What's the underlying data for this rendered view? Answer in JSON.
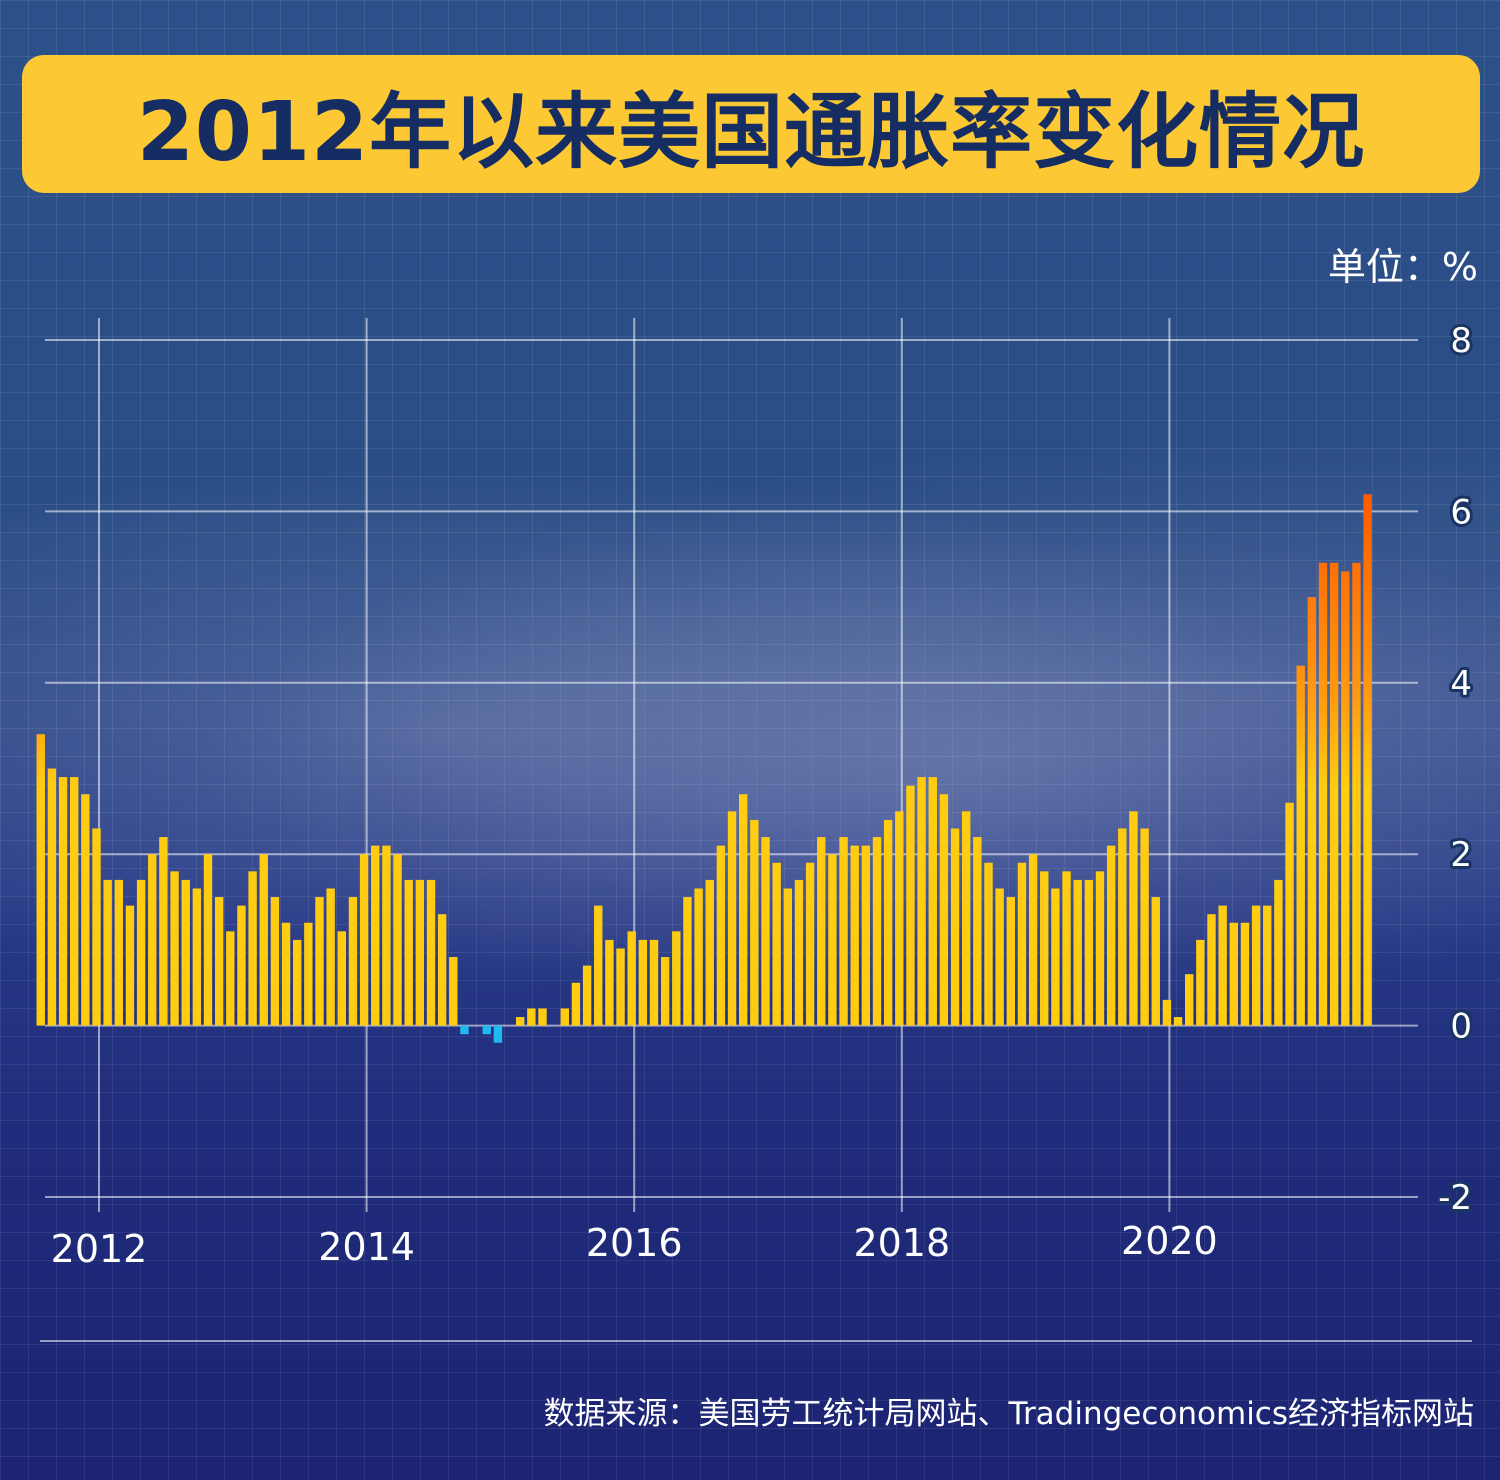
{
  "title": "2012年以来美国通胀率变化情况",
  "unit": "单位：%",
  "source": "数据来源：美国劳工统计局网站、Tradingeconomics经济指标网站",
  "colors": {
    "title_bg": "#fcc935",
    "title_text": "#152d63",
    "bar_positive_low": "#ffcc11",
    "bar_positive_high": "#ff5a00",
    "bar_negative": "#22b8f0"
  },
  "chart_data": {
    "type": "bar",
    "title": "2012年以来美国通胀率变化情况",
    "ylabel": "单位：%",
    "ylim": [
      -2,
      8
    ],
    "yticks": [
      8,
      6,
      4,
      2,
      0,
      -2
    ],
    "ytick_labels": [
      "8",
      "6",
      "4",
      "2",
      "0",
      "-2"
    ],
    "xticks": [
      "2012",
      "2014",
      "2016",
      "2018",
      "2020"
    ],
    "grid": true,
    "start": "2011-10",
    "frequency": "monthly",
    "values": [
      3.4,
      3.0,
      2.9,
      2.9,
      2.7,
      2.3,
      1.7,
      1.7,
      1.4,
      1.7,
      2.0,
      2.2,
      1.8,
      1.7,
      1.6,
      2.0,
      1.5,
      1.1,
      1.4,
      1.8,
      2.0,
      1.5,
      1.2,
      1.0,
      1.2,
      1.5,
      1.6,
      1.1,
      1.5,
      2.0,
      2.1,
      2.1,
      2.0,
      1.7,
      1.7,
      1.7,
      1.3,
      0.8,
      -0.1,
      0.0,
      -0.1,
      -0.2,
      0.0,
      0.1,
      0.2,
      0.2,
      0.0,
      0.2,
      0.5,
      0.7,
      1.4,
      1.0,
      0.9,
      1.1,
      1.0,
      1.0,
      0.8,
      1.1,
      1.5,
      1.6,
      1.7,
      2.1,
      2.5,
      2.7,
      2.4,
      2.2,
      1.9,
      1.6,
      1.7,
      1.9,
      2.2,
      2.0,
      2.2,
      2.1,
      2.1,
      2.2,
      2.4,
      2.5,
      2.8,
      2.9,
      2.9,
      2.7,
      2.3,
      2.5,
      2.2,
      1.9,
      1.6,
      1.5,
      1.9,
      2.0,
      1.8,
      1.6,
      1.8,
      1.7,
      1.7,
      1.8,
      2.1,
      2.3,
      2.5,
      2.3,
      1.5,
      0.3,
      0.1,
      0.6,
      1.0,
      1.3,
      1.4,
      1.2,
      1.2,
      1.4,
      1.4,
      1.7,
      2.6,
      4.2,
      5.0,
      5.4,
      5.4,
      5.3,
      5.4,
      6.2
    ]
  }
}
